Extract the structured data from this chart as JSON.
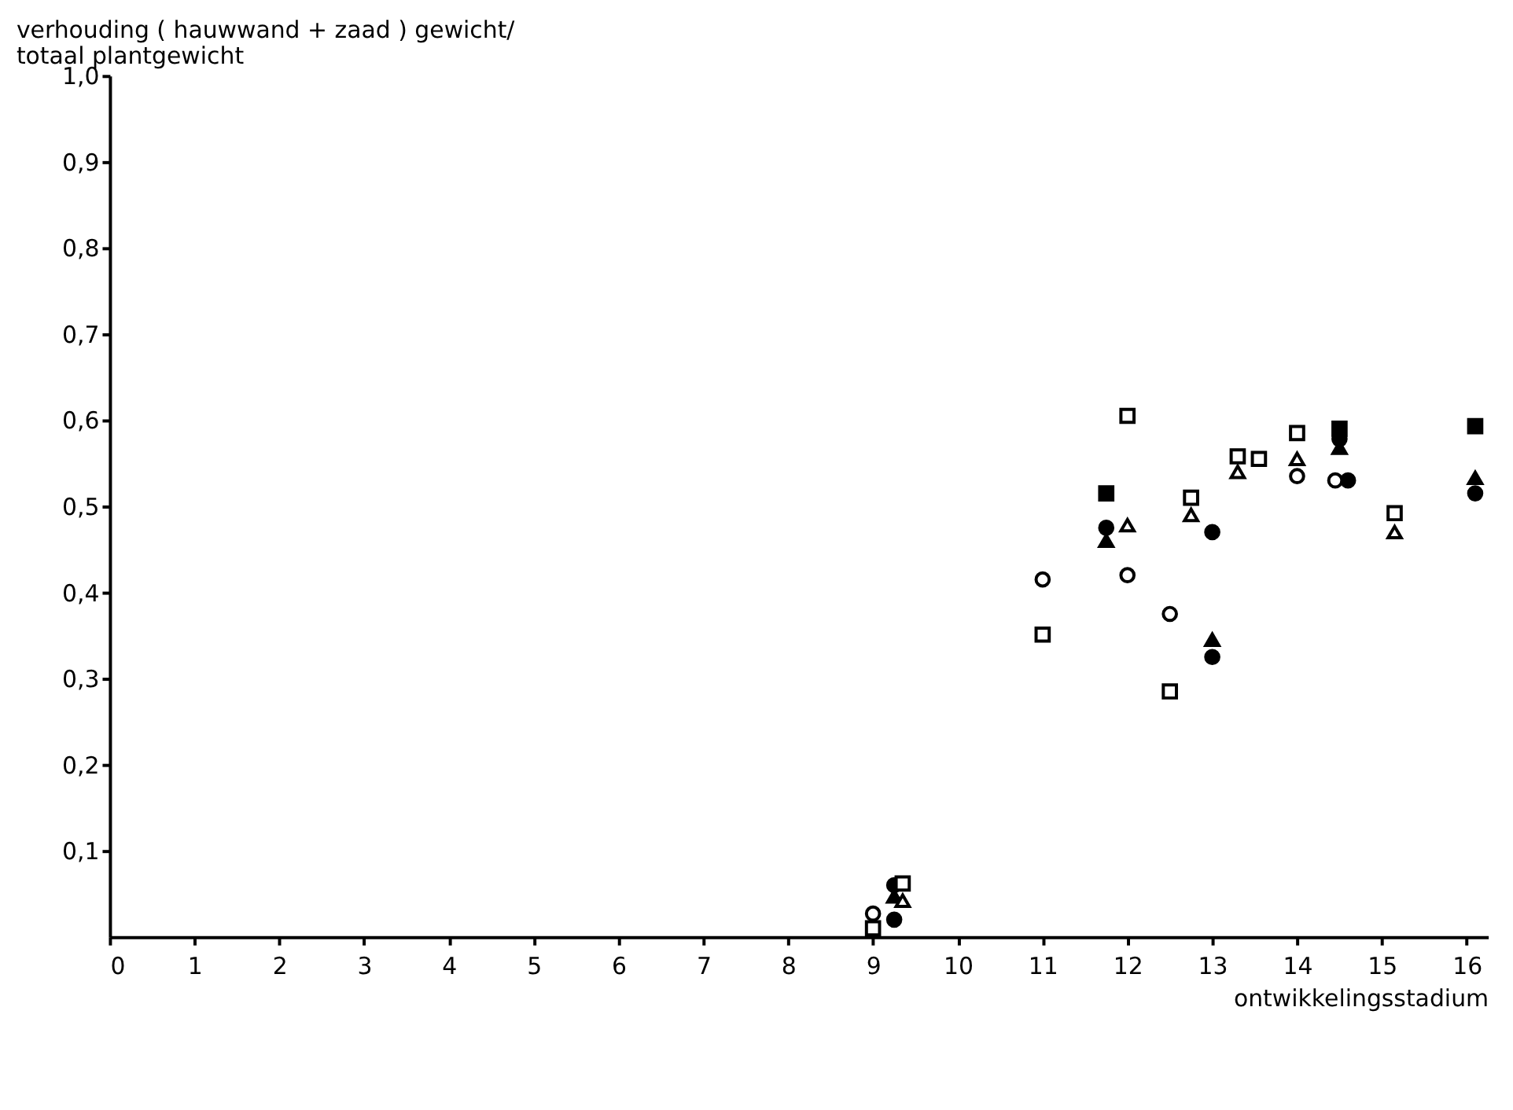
{
  "chart_data": {
    "type": "scatter",
    "xlabel": "ontwikkelingsstadium",
    "ylabel": "verhouding ( hauwwand + zaad ) gewicht/\ntotaal plantgewicht",
    "xlim": [
      0,
      16.25
    ],
    "ylim": [
      0,
      1
    ],
    "xticks": [
      0,
      1,
      2,
      3,
      4,
      5,
      6,
      7,
      8,
      9,
      10,
      11,
      12,
      13,
      14,
      15,
      16
    ],
    "yticks": [
      {
        "value": 0.1,
        "label": "0,1"
      },
      {
        "value": 0.2,
        "label": "0,2"
      },
      {
        "value": 0.3,
        "label": "0,3"
      },
      {
        "value": 0.4,
        "label": "0,4"
      },
      {
        "value": 0.5,
        "label": "0,5"
      },
      {
        "value": 0.6,
        "label": "0,6"
      },
      {
        "value": 0.7,
        "label": "0,7"
      },
      {
        "value": 0.8,
        "label": "0,8"
      },
      {
        "value": 0.9,
        "label": "0,9"
      },
      {
        "value": 1.0,
        "label": "1,0"
      }
    ],
    "grid": false,
    "series": [
      {
        "color": "#000000",
        "marker": "square",
        "x": [
          11.75,
          14.5,
          16.1
        ],
        "values": [
          0.515,
          0.59,
          0.593
        ]
      },
      {
        "color": "#000000",
        "marker": "circle",
        "x": [
          9.25,
          9.25,
          11.75,
          13,
          13,
          14.5,
          14.6,
          16.1
        ],
        "values": [
          0.06,
          0.02,
          0.475,
          0.47,
          0.325,
          0.578,
          0.53,
          0.515
        ]
      },
      {
        "color": "#000000",
        "marker": "triangle",
        "x": [
          9.25,
          11.75,
          13,
          14.5,
          16.1
        ],
        "values": [
          0.047,
          0.46,
          0.345,
          0.568,
          0.533
        ]
      },
      {
        "color": "#ffffff",
        "marker": "square",
        "x": [
          9.35,
          12,
          12.75,
          13.3,
          14,
          15.15
        ],
        "values": [
          0.062,
          0.605,
          0.51,
          0.558,
          0.585,
          0.492
        ]
      },
      {
        "color": "#ffffff",
        "marker": "triangle",
        "x": [
          9.35,
          12,
          12.75,
          13.3,
          14,
          15.15
        ],
        "values": [
          0.042,
          0.478,
          0.49,
          0.54,
          0.555,
          0.47
        ]
      },
      {
        "color": "#ffffff",
        "marker": "circle",
        "x": [
          9,
          11,
          12,
          12.5,
          14,
          14.45
        ],
        "values": [
          0.027,
          0.415,
          0.42,
          0.375,
          0.535,
          0.53
        ]
      },
      {
        "color": "#ffffff",
        "marker": "square",
        "x": [
          9,
          11,
          12.5,
          13.55
        ],
        "values": [
          0.01,
          0.351,
          0.285,
          0.555
        ]
      }
    ]
  }
}
